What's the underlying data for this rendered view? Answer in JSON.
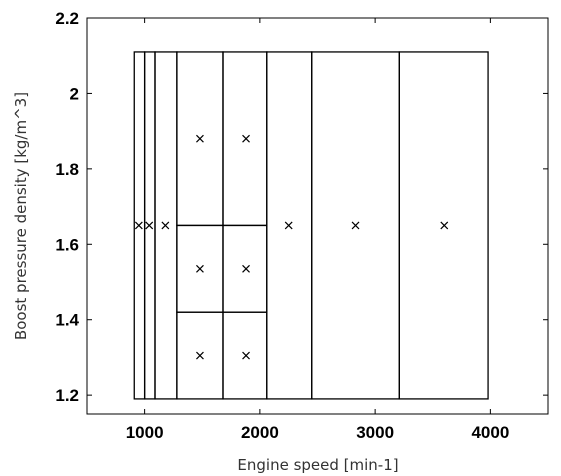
{
  "chart_data": {
    "type": "scatter",
    "title": "",
    "xlabel": "Engine speed [min-1]",
    "ylabel": "Boost pressure density [kg/m^3]",
    "xlim": [
      500,
      4500
    ],
    "ylim": [
      1.15,
      2.2
    ],
    "x_ticks": [
      1000,
      2000,
      3000,
      4000
    ],
    "y_ticks": [
      1.2,
      1.4,
      1.6,
      1.8,
      2.0,
      2.2
    ],
    "x_tick_labels": [
      "1000",
      "2000",
      "3000",
      "4000"
    ],
    "y_tick_labels": [
      "1.2",
      "1.4",
      "1.6",
      "1.8",
      "2",
      "2.2"
    ],
    "grid": false,
    "points": [
      {
        "x": 950,
        "y": 1.65
      },
      {
        "x": 1040,
        "y": 1.65
      },
      {
        "x": 1180,
        "y": 1.65
      },
      {
        "x": 1480,
        "y": 1.88
      },
      {
        "x": 1880,
        "y": 1.88
      },
      {
        "x": 1480,
        "y": 1.535
      },
      {
        "x": 1880,
        "y": 1.535
      },
      {
        "x": 1480,
        "y": 1.305
      },
      {
        "x": 1880,
        "y": 1.305
      },
      {
        "x": 2250,
        "y": 1.65
      },
      {
        "x": 2830,
        "y": 1.65
      },
      {
        "x": 3600,
        "y": 1.65
      }
    ],
    "regions": [
      {
        "x0": 910,
        "x1": 1000,
        "y0": 1.19,
        "y1": 2.11
      },
      {
        "x0": 1000,
        "x1": 1090,
        "y0": 1.19,
        "y1": 2.11
      },
      {
        "x0": 1090,
        "x1": 1280,
        "y0": 1.19,
        "y1": 2.11
      },
      {
        "x0": 1280,
        "x1": 1680,
        "y0": 1.65,
        "y1": 2.11
      },
      {
        "x0": 1680,
        "x1": 2060,
        "y0": 1.65,
        "y1": 2.11
      },
      {
        "x0": 1280,
        "x1": 1680,
        "y0": 1.42,
        "y1": 1.65
      },
      {
        "x0": 1680,
        "x1": 2060,
        "y0": 1.42,
        "y1": 1.65
      },
      {
        "x0": 1280,
        "x1": 1680,
        "y0": 1.19,
        "y1": 1.42
      },
      {
        "x0": 1680,
        "x1": 2060,
        "y0": 1.19,
        "y1": 1.42
      },
      {
        "x0": 2060,
        "x1": 2450,
        "y0": 1.19,
        "y1": 2.11
      },
      {
        "x0": 2450,
        "x1": 3210,
        "y0": 1.19,
        "y1": 2.11
      },
      {
        "x0": 3210,
        "x1": 3980,
        "y0": 1.19,
        "y1": 2.11
      }
    ]
  }
}
